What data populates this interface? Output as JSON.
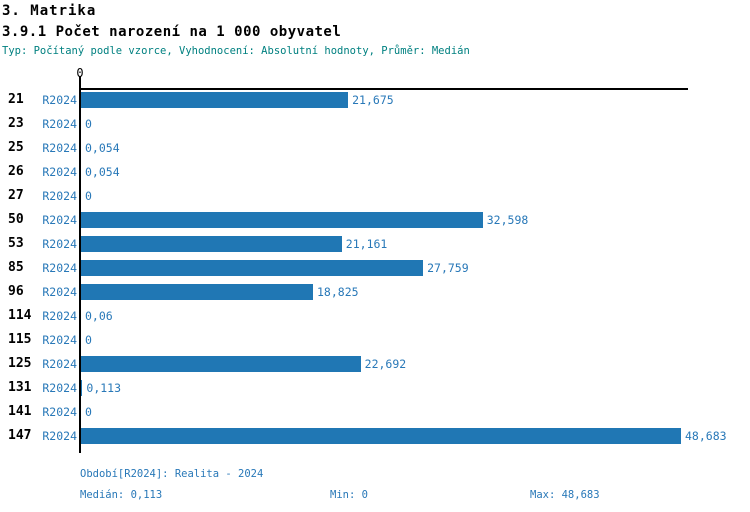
{
  "header": {
    "title": "3. Matrika",
    "subtitle": "3.9.1 Počet narození na 1 000 obyvatel",
    "meta": "Typ: Počítaný podle vzorce, Vyhodnocení: Absolutní hodnoty, Průměr: Medián"
  },
  "chart_data": {
    "type": "bar",
    "orientation": "horizontal",
    "title": "3.9.1 Počet narození na 1 000 obyvatel",
    "categories": [
      "21",
      "23",
      "25",
      "26",
      "27",
      "50",
      "53",
      "85",
      "96",
      "114",
      "115",
      "125",
      "131",
      "141",
      "147"
    ],
    "series": [
      {
        "name": "R2024",
        "values": [
          21.675,
          0,
          0.054,
          0.054,
          0,
          32.598,
          21.161,
          27.759,
          18.825,
          0.06,
          0,
          22.692,
          0.113,
          0,
          48.683
        ],
        "value_labels": [
          "21,675",
          "0",
          "0,054",
          "0,054",
          "0",
          "32,598",
          "21,161",
          "27,759",
          "18,825",
          "0,06",
          "0",
          "22,692",
          "0,113",
          "0",
          "48,683"
        ]
      }
    ],
    "xlim": [
      0,
      48.683
    ],
    "x_tick_labels": [
      "0"
    ],
    "grid": false,
    "legend": "none",
    "bar_color": "#2077B4"
  },
  "footer": {
    "period_label": "Období[R2024]: Realita - 2024",
    "median_label": "Medián: 0,113",
    "min_label": "Min: 0",
    "max_label": "Max: 48,683"
  },
  "colors": {
    "bar": "#2077B4",
    "blue_text": "#2878B8",
    "teal_text": "#008080",
    "axis": "#000000",
    "background": "#FFFFFF"
  }
}
